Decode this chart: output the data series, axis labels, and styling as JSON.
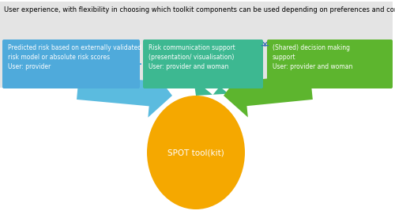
{
  "title": "User experience, with flexibility in choosing which toolkit components can be used depending on preferences and context",
  "title_fontsize": 6.8,
  "box1_text": "Predicted risk based on externally validated\nrisk model or absolute risk scores\nUser: provider",
  "box2_text": "Risk communication support\n(presentation/ visualisation)\nUser: provider and woman",
  "box3_text": "(Shared) decision making\nsupport\nUser: provider and woman",
  "circle_text": "SPOT tool(kit)",
  "box1_color": "#4FAADB",
  "box2_color": "#3DB891",
  "box3_color": "#5DB52E",
  "circle_color": "#F5A800",
  "arrow1_color": "#5BBBDF",
  "arrow2_color": "#3DB891",
  "arrow3_color": "#5DB52E",
  "curve_color": "#3A6EB5",
  "bg_color": "#E4E4E4",
  "white": "#FFFFFF",
  "text_color": "#000000"
}
